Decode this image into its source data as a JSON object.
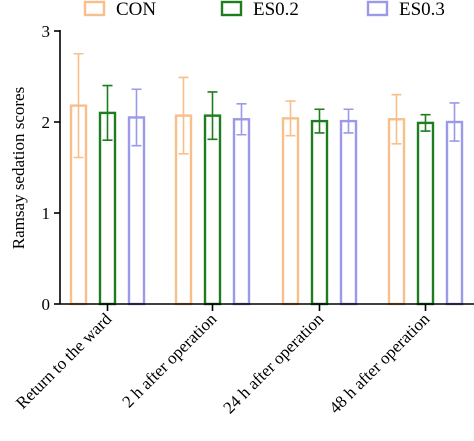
{
  "chart_data": {
    "type": "bar",
    "categories": [
      "Return to the ward",
      "2 h after operation",
      "24 h after operation",
      "48 h after operation"
    ],
    "ylabel": "Ramsay sedation scores",
    "xlabel": "",
    "ylim": [
      0,
      3
    ],
    "yticks": [
      "0",
      "1",
      "2",
      "3"
    ],
    "grid": false,
    "legend_position": "top",
    "error_bars": true,
    "series": [
      {
        "name": "CON",
        "color": "#f8bf8a",
        "values": [
          2.18,
          2.07,
          2.04,
          2.03
        ],
        "error": [
          0.57,
          0.42,
          0.19,
          0.27
        ]
      },
      {
        "name": "ES0.2",
        "color": "#1e7d1e",
        "values": [
          2.1,
          2.07,
          2.01,
          1.99
        ],
        "error": [
          0.3,
          0.26,
          0.13,
          0.09
        ]
      },
      {
        "name": "ES0.3",
        "color": "#9a9ae8",
        "values": [
          2.05,
          2.03,
          2.01,
          2.0
        ],
        "error": [
          0.31,
          0.17,
          0.13,
          0.21
        ]
      }
    ]
  }
}
